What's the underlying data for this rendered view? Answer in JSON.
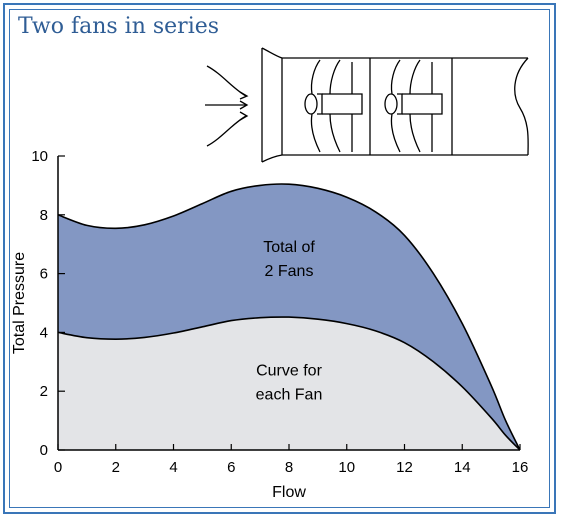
{
  "title": "Two fans in series",
  "colors": {
    "border": "#3a76b8",
    "title": "#2f5d95",
    "total_fill": "#8397c3",
    "single_fill": "#e3e4e7",
    "curve": "#000000"
  },
  "diagram": {
    "icon": "two-fans-in-series-duct-icon"
  },
  "chart_data": {
    "type": "area",
    "xlabel": "Flow",
    "ylabel": "Total Pressure",
    "xlim": [
      0,
      16
    ],
    "ylim": [
      0,
      10
    ],
    "xticks": [
      0,
      2,
      4,
      6,
      8,
      10,
      12,
      14,
      16
    ],
    "yticks": [
      0,
      2,
      4,
      6,
      8,
      10
    ],
    "grid": false,
    "series": [
      {
        "key": "total",
        "x": [
          0,
          1,
          2,
          3,
          4,
          5,
          6,
          7,
          8,
          9,
          10,
          11,
          12,
          13,
          14,
          15,
          15.5,
          16
        ],
        "y": [
          8.0,
          7.64,
          7.54,
          7.66,
          7.96,
          8.38,
          8.8,
          9.0,
          9.04,
          8.9,
          8.6,
          8.1,
          7.3,
          6.0,
          4.3,
          2.2,
          1.0,
          0
        ]
      },
      {
        "key": "single",
        "x": [
          0,
          1,
          2,
          3,
          4,
          5,
          6,
          7,
          8,
          9,
          10,
          11,
          12,
          13,
          14,
          15,
          15.5,
          16
        ],
        "y": [
          4.0,
          3.82,
          3.77,
          3.83,
          3.98,
          4.19,
          4.4,
          4.5,
          4.52,
          4.45,
          4.3,
          4.05,
          3.65,
          3.0,
          2.15,
          1.1,
          0.5,
          0
        ]
      }
    ],
    "annotations": [
      {
        "lines": [
          "Total of",
          "2 Fans"
        ],
        "x": 8,
        "y": 6.5
      },
      {
        "lines": [
          "Curve for",
          "each Fan"
        ],
        "x": 8,
        "y": 2.3
      }
    ]
  }
}
